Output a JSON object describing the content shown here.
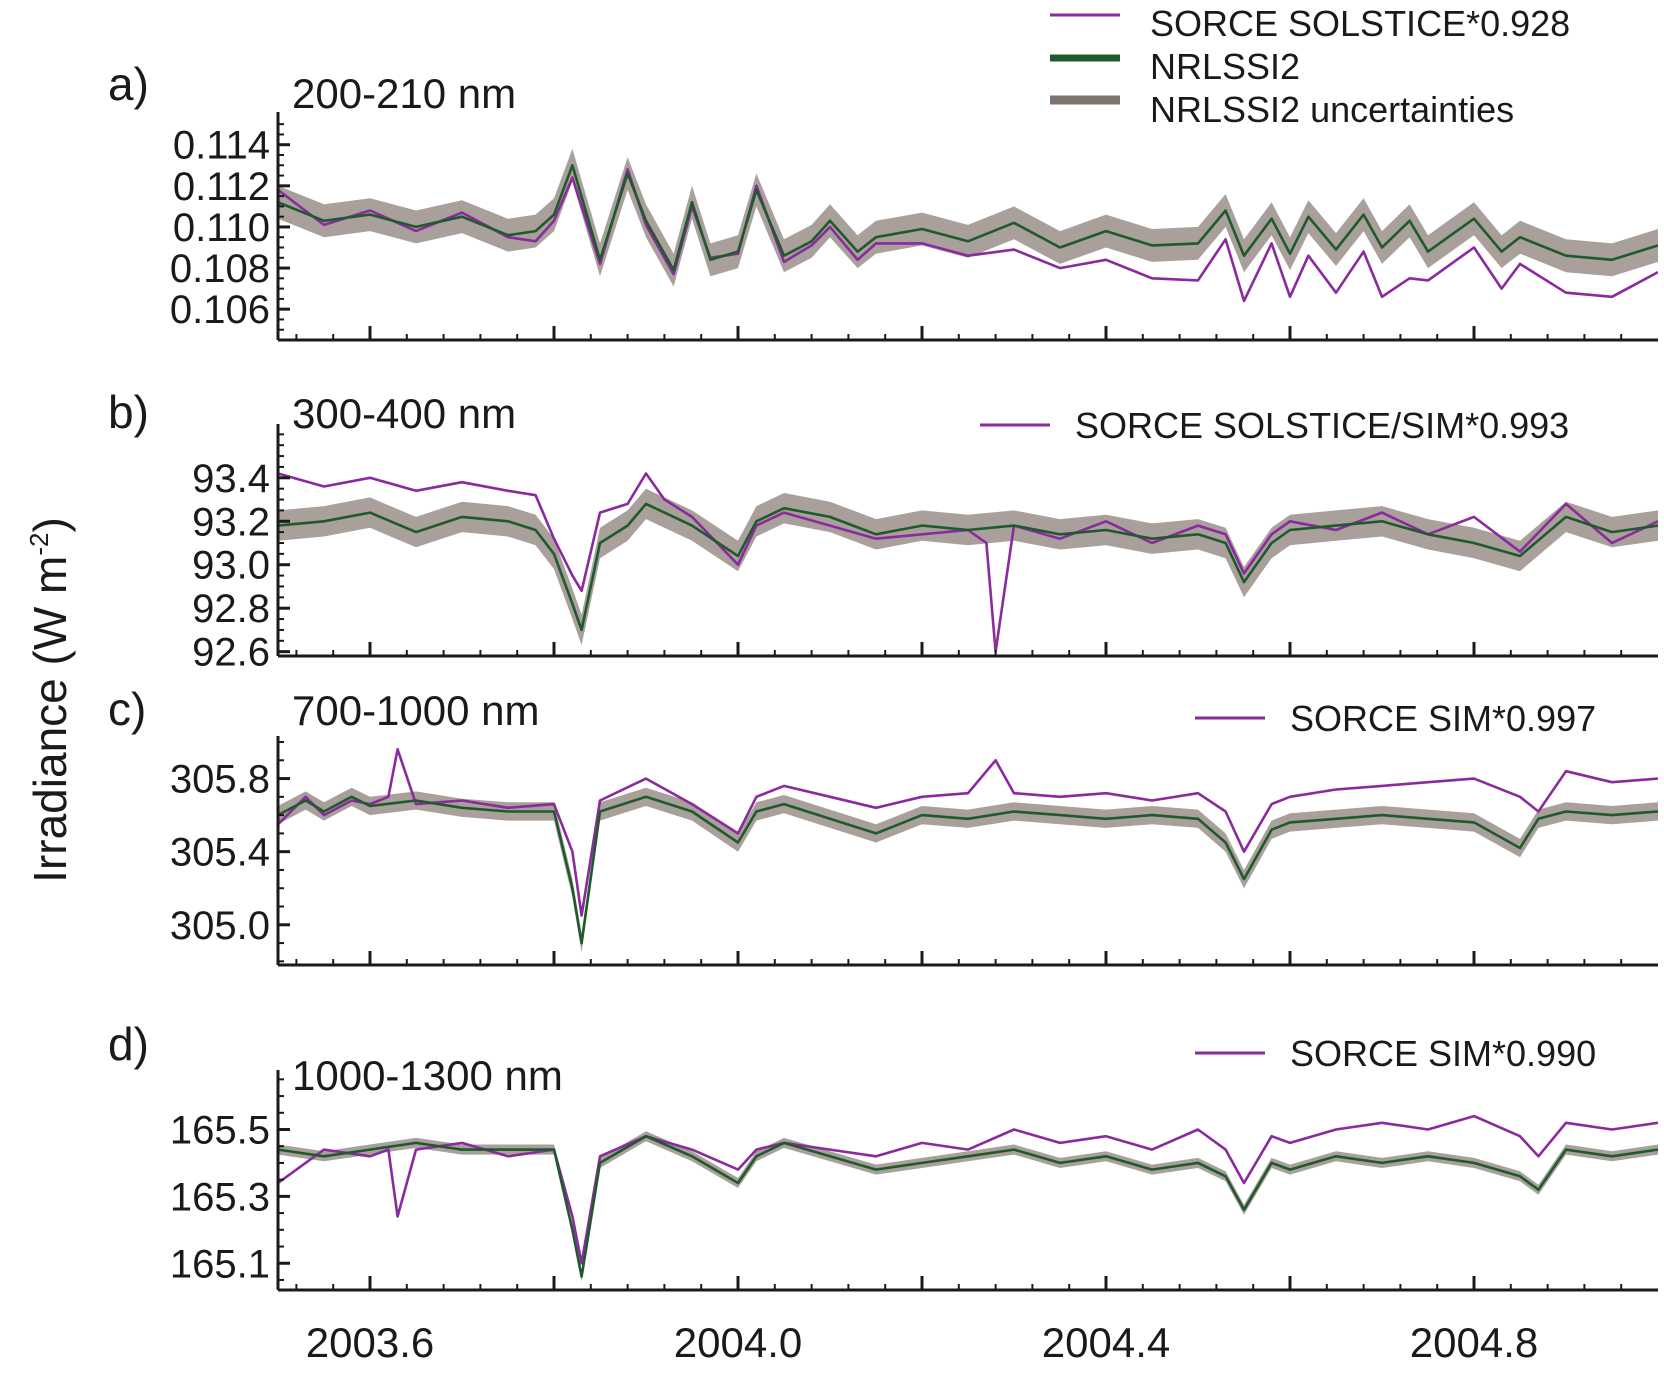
{
  "figure": {
    "ylabel_main": "Irradiance (W m",
    "ylabel_sup": "-2",
    "ylabel_close": ")",
    "legend_main": [
      {
        "label": "SORCE SOLSTICE*0.928",
        "color": "#8a2a9e",
        "kind": "line"
      },
      {
        "label": "NRLSSI2",
        "color": "#1f5a2c",
        "kind": "thick"
      },
      {
        "label": "NRLSSI2 uncertainties",
        "color": "#7d7370",
        "kind": "band"
      }
    ],
    "colors": {
      "sorce": "#8a2a9e",
      "nrlssi2": "#1f5a2c",
      "uncertainty": "#9a8f8a",
      "axis": "#1a1a1a"
    }
  },
  "chart_data": [
    {
      "type": "line",
      "panel_letter": "a)",
      "title": "200-210 nm",
      "series_label": "SORCE SOLSTICE*0.928",
      "xlim": [
        2003.5,
        2005.0
      ],
      "ylim": [
        0.1045,
        0.1153
      ],
      "yticks": [
        0.106,
        0.108,
        0.11,
        0.112,
        0.114
      ],
      "ytick_labels": [
        "0.106",
        "0.108",
        "0.110",
        "0.112",
        "0.114"
      ],
      "band_half_width": 0.0008,
      "series": [
        {
          "name": "NRLSSI2",
          "x": [
            2003.5,
            2003.55,
            2003.6,
            2003.65,
            2003.7,
            2003.75,
            2003.78,
            2003.8,
            2003.82,
            2003.85,
            2003.88,
            2003.9,
            2003.93,
            2003.95,
            2003.97,
            2004.0,
            2004.02,
            2004.05,
            2004.08,
            2004.1,
            2004.13,
            2004.15,
            2004.2,
            2004.25,
            2004.3,
            2004.35,
            2004.4,
            2004.45,
            2004.5,
            2004.53,
            2004.55,
            2004.58,
            2004.6,
            2004.62,
            2004.65,
            2004.68,
            2004.7,
            2004.73,
            2004.75,
            2004.8,
            2004.83,
            2004.85,
            2004.9,
            2004.95,
            2005.0
          ],
          "y": [
            0.1112,
            0.1103,
            0.1106,
            0.11,
            0.1105,
            0.1096,
            0.1098,
            0.1106,
            0.113,
            0.1084,
            0.1126,
            0.1103,
            0.1079,
            0.1112,
            0.1084,
            0.1088,
            0.1118,
            0.1086,
            0.1093,
            0.1103,
            0.1088,
            0.1095,
            0.1099,
            0.1093,
            0.1102,
            0.109,
            0.1098,
            0.1091,
            0.1092,
            0.1108,
            0.1086,
            0.1104,
            0.1087,
            0.1105,
            0.1089,
            0.1106,
            0.109,
            0.1103,
            0.1088,
            0.1104,
            0.1088,
            0.1095,
            0.1086,
            0.1084,
            0.1091
          ]
        },
        {
          "name": "SORCE SOLSTICE*0.928",
          "x": [
            2003.5,
            2003.55,
            2003.6,
            2003.65,
            2003.7,
            2003.75,
            2003.78,
            2003.8,
            2003.82,
            2003.85,
            2003.88,
            2003.9,
            2003.93,
            2003.95,
            2003.97,
            2004.0,
            2004.02,
            2004.05,
            2004.08,
            2004.1,
            2004.13,
            2004.15,
            2004.2,
            2004.25,
            2004.3,
            2004.35,
            2004.4,
            2004.45,
            2004.5,
            2004.53,
            2004.55,
            2004.58,
            2004.6,
            2004.62,
            2004.65,
            2004.68,
            2004.7,
            2004.73,
            2004.75,
            2004.8,
            2004.83,
            2004.85,
            2004.9,
            2004.95,
            2005.0
          ],
          "y": [
            0.1118,
            0.1101,
            0.1108,
            0.1098,
            0.1107,
            0.1095,
            0.1093,
            0.1103,
            0.1124,
            0.1082,
            0.1128,
            0.1101,
            0.1077,
            0.111,
            0.1085,
            0.1087,
            0.112,
            0.1083,
            0.1091,
            0.11,
            0.1084,
            0.1092,
            0.1092,
            0.1086,
            0.1089,
            0.108,
            0.1084,
            0.1075,
            0.1074,
            0.1094,
            0.1064,
            0.1092,
            0.1066,
            0.1086,
            0.1068,
            0.1088,
            0.1066,
            0.1075,
            0.1074,
            0.109,
            0.107,
            0.1082,
            0.1068,
            0.1066,
            0.1078
          ]
        }
      ]
    },
    {
      "type": "line",
      "panel_letter": "b)",
      "title": "300-400 nm",
      "series_label": "SORCE SOLSTICE/SIM*0.993",
      "xlim": [
        2003.5,
        2005.0
      ],
      "ylim": [
        92.58,
        93.62
      ],
      "yticks": [
        92.6,
        92.8,
        93.0,
        93.2,
        93.4
      ],
      "ytick_labels": [
        "92.6",
        "92.8",
        "93.0",
        "93.2",
        "93.4"
      ],
      "band_half_width": 0.07,
      "series": [
        {
          "name": "NRLSSI2",
          "x": [
            2003.5,
            2003.55,
            2003.6,
            2003.65,
            2003.7,
            2003.75,
            2003.78,
            2003.8,
            2003.82,
            2003.83,
            2003.85,
            2003.88,
            2003.9,
            2003.92,
            2003.95,
            2004.0,
            2004.02,
            2004.05,
            2004.1,
            2004.15,
            2004.2,
            2004.25,
            2004.3,
            2004.35,
            2004.4,
            2004.45,
            2004.5,
            2004.53,
            2004.55,
            2004.58,
            2004.6,
            2004.65,
            2004.7,
            2004.75,
            2004.8,
            2004.85,
            2004.9,
            2004.95,
            2005.0
          ],
          "y": [
            93.18,
            93.2,
            93.24,
            93.15,
            93.22,
            93.2,
            93.16,
            93.05,
            92.82,
            92.7,
            93.1,
            93.18,
            93.28,
            93.24,
            93.18,
            93.04,
            93.2,
            93.26,
            93.22,
            93.14,
            93.18,
            93.16,
            93.18,
            93.14,
            93.16,
            93.12,
            93.14,
            93.1,
            92.92,
            93.1,
            93.16,
            93.18,
            93.2,
            93.14,
            93.1,
            93.04,
            93.22,
            93.15,
            93.18
          ]
        },
        {
          "name": "SORCE SOLSTICE/SIM*0.993",
          "x": [
            2003.5,
            2003.55,
            2003.6,
            2003.65,
            2003.7,
            2003.75,
            2003.78,
            2003.8,
            2003.82,
            2003.83,
            2003.85,
            2003.88,
            2003.9,
            2003.92,
            2003.95,
            2004.0,
            2004.02,
            2004.05,
            2004.1,
            2004.15,
            2004.2,
            2004.25,
            2004.27,
            2004.28,
            2004.3,
            2004.35,
            2004.4,
            2004.45,
            2004.5,
            2004.53,
            2004.55,
            2004.58,
            2004.6,
            2004.65,
            2004.7,
            2004.75,
            2004.8,
            2004.85,
            2004.9,
            2004.95,
            2005.0
          ],
          "y": [
            93.42,
            93.36,
            93.4,
            93.34,
            93.38,
            93.34,
            93.32,
            93.12,
            92.95,
            92.88,
            93.24,
            93.28,
            93.42,
            93.3,
            93.22,
            93.0,
            93.18,
            93.24,
            93.18,
            93.12,
            93.14,
            93.16,
            93.1,
            92.6,
            93.18,
            93.12,
            93.2,
            93.1,
            93.18,
            93.14,
            92.96,
            93.14,
            93.2,
            93.16,
            93.24,
            93.14,
            93.22,
            93.06,
            93.28,
            93.1,
            93.2
          ]
        }
      ]
    },
    {
      "type": "line",
      "panel_letter": "c)",
      "title": "700-1000 nm",
      "series_label": "SORCE SIM*0.997",
      "xlim": [
        2003.5,
        2005.0
      ],
      "ylim": [
        304.78,
        306.0
      ],
      "yticks": [
        305.0,
        305.4,
        305.8
      ],
      "ytick_labels": [
        "305.0",
        "305.4",
        "305.8"
      ],
      "band_half_width": 0.05,
      "series": [
        {
          "name": "NRLSSI2",
          "x": [
            2003.5,
            2003.53,
            2003.55,
            2003.58,
            2003.6,
            2003.65,
            2003.7,
            2003.75,
            2003.8,
            2003.82,
            2003.83,
            2003.85,
            2003.9,
            2003.95,
            2004.0,
            2004.02,
            2004.05,
            2004.1,
            2004.15,
            2004.2,
            2004.25,
            2004.3,
            2004.35,
            2004.4,
            2004.45,
            2004.5,
            2004.53,
            2004.55,
            2004.58,
            2004.6,
            2004.65,
            2004.7,
            2004.75,
            2004.8,
            2004.85,
            2004.87,
            2004.9,
            2004.95,
            2005.0
          ],
          "y": [
            305.6,
            305.68,
            305.62,
            305.7,
            305.65,
            305.68,
            305.64,
            305.62,
            305.62,
            305.2,
            304.9,
            305.62,
            305.7,
            305.62,
            305.45,
            305.62,
            305.66,
            305.58,
            305.5,
            305.6,
            305.58,
            305.62,
            305.6,
            305.58,
            305.6,
            305.58,
            305.45,
            305.25,
            305.52,
            305.56,
            305.58,
            305.6,
            305.58,
            305.56,
            305.42,
            305.58,
            305.62,
            305.6,
            305.62
          ]
        },
        {
          "name": "SORCE SIM*0.997",
          "x": [
            2003.5,
            2003.53,
            2003.55,
            2003.58,
            2003.6,
            2003.62,
            2003.63,
            2003.65,
            2003.7,
            2003.75,
            2003.8,
            2003.82,
            2003.83,
            2003.85,
            2003.9,
            2003.95,
            2004.0,
            2004.02,
            2004.05,
            2004.1,
            2004.15,
            2004.2,
            2004.25,
            2004.28,
            2004.3,
            2004.35,
            2004.4,
            2004.45,
            2004.5,
            2004.53,
            2004.55,
            2004.58,
            2004.6,
            2004.65,
            2004.7,
            2004.75,
            2004.8,
            2004.85,
            2004.87,
            2004.9,
            2004.95,
            2005.0
          ],
          "y": [
            305.55,
            305.7,
            305.6,
            305.68,
            305.66,
            305.7,
            305.96,
            305.66,
            305.68,
            305.64,
            305.66,
            305.4,
            305.05,
            305.68,
            305.8,
            305.66,
            305.5,
            305.7,
            305.76,
            305.7,
            305.64,
            305.7,
            305.72,
            305.9,
            305.72,
            305.7,
            305.72,
            305.68,
            305.72,
            305.62,
            305.4,
            305.66,
            305.7,
            305.74,
            305.76,
            305.78,
            305.8,
            305.7,
            305.62,
            305.84,
            305.78,
            305.8
          ]
        }
      ]
    },
    {
      "type": "line",
      "panel_letter": "d)",
      "title": "1000-1300 nm",
      "series_label": "SORCE SIM*0.990",
      "xlim": [
        2003.5,
        2005.0
      ],
      "ylim": [
        165.02,
        165.66
      ],
      "yticks": [
        165.1,
        165.3,
        165.5
      ],
      "ytick_labels": [
        "165.1",
        "165.3",
        "165.5"
      ],
      "band_half_width": 0.015,
      "series": [
        {
          "name": "NRLSSI2",
          "x": [
            2003.5,
            2003.55,
            2003.6,
            2003.65,
            2003.7,
            2003.75,
            2003.8,
            2003.82,
            2003.83,
            2003.85,
            2003.9,
            2003.95,
            2004.0,
            2004.02,
            2004.05,
            2004.1,
            2004.15,
            2004.2,
            2004.25,
            2004.3,
            2004.35,
            2004.4,
            2004.45,
            2004.5,
            2004.53,
            2004.55,
            2004.58,
            2004.6,
            2004.65,
            2004.7,
            2004.75,
            2004.8,
            2004.85,
            2004.87,
            2004.9,
            2004.95,
            2005.0
          ],
          "y": [
            165.44,
            165.42,
            165.44,
            165.46,
            165.44,
            165.44,
            165.44,
            165.2,
            165.06,
            165.4,
            165.48,
            165.42,
            165.34,
            165.42,
            165.46,
            165.42,
            165.38,
            165.4,
            165.42,
            165.44,
            165.4,
            165.42,
            165.38,
            165.4,
            165.36,
            165.26,
            165.4,
            165.38,
            165.42,
            165.4,
            165.42,
            165.4,
            165.36,
            165.32,
            165.44,
            165.42,
            165.44
          ]
        },
        {
          "name": "SORCE SIM*0.990",
          "x": [
            2003.5,
            2003.55,
            2003.6,
            2003.62,
            2003.63,
            2003.65,
            2003.7,
            2003.75,
            2003.8,
            2003.82,
            2003.83,
            2003.85,
            2003.9,
            2003.95,
            2004.0,
            2004.02,
            2004.05,
            2004.1,
            2004.15,
            2004.2,
            2004.25,
            2004.3,
            2004.35,
            2004.4,
            2004.45,
            2004.5,
            2004.53,
            2004.55,
            2004.58,
            2004.6,
            2004.65,
            2004.7,
            2004.75,
            2004.8,
            2004.85,
            2004.87,
            2004.9,
            2004.95,
            2005.0
          ],
          "y": [
            165.34,
            165.44,
            165.42,
            165.44,
            165.24,
            165.44,
            165.46,
            165.42,
            165.44,
            165.24,
            165.1,
            165.42,
            165.48,
            165.44,
            165.38,
            165.44,
            165.46,
            165.44,
            165.42,
            165.46,
            165.44,
            165.5,
            165.46,
            165.48,
            165.44,
            165.5,
            165.44,
            165.34,
            165.48,
            165.46,
            165.5,
            165.52,
            165.5,
            165.54,
            165.48,
            165.42,
            165.52,
            165.5,
            165.52
          ]
        }
      ]
    }
  ],
  "x_axis": {
    "ticks": [
      2003.6,
      2004.0,
      2004.4,
      2004.8
    ],
    "tick_labels": [
      "2003.6",
      "2004.0",
      "2004.4",
      "2004.8"
    ],
    "minor_step": 0.04
  }
}
